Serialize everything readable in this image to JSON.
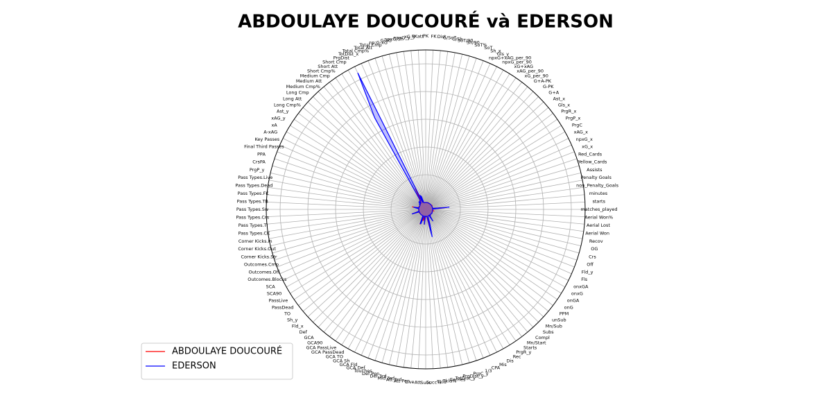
{
  "chart_data": {
    "type": "radar",
    "title": "ABDOULAYE DOUCOURÉ và EDERSON",
    "categories": [
      "matches_played",
      "starts",
      "minutes",
      "non_Penalty_Goals",
      "Penalty Goals",
      "Assists",
      "Yellow_Cards",
      "Red_Cards",
      "xG_x",
      "npxG_x",
      "xAG_x",
      "PrgC",
      "PrgP_x",
      "PrgR_x",
      "Gls_x",
      "Ast_x",
      "G+A",
      "G-PK",
      "G+A-PK",
      "xG_per_90",
      "xAG_per_90",
      "xG+xAG",
      "npxG_per_90",
      "npxG+xAG_per_90",
      "Gls_y",
      "Sh_x",
      "SoT",
      "SoT%",
      "Sh/90",
      "SoT/90",
      "G/Sh",
      "G/SoT",
      "Dist",
      "FK",
      "PK",
      "PKatt",
      "xG_y",
      "npxG_y",
      "npxG/Sh",
      "G-xG",
      "np:G-xG",
      "Total Cmp",
      "Total Att",
      "Total Cmp%",
      "TotDist_x",
      "PrgDist",
      "Short Cmp",
      "Short Att",
      "Short Cmp%",
      "Medium Cmp",
      "Medium Att",
      "Medium Cmp%",
      "Long Cmp",
      "Long Att",
      "Long Cmp%",
      "Ast_y",
      "xAG_y",
      "xA",
      "A-xAG",
      "Key Passes",
      "Final Third Passes",
      "PPA",
      "CrsPA",
      "PrgP_y",
      "Pass Types.Live",
      "Pass Types.Dead",
      "Pass Types.FK",
      "Pass Types.TB",
      "Pass Types.Sw",
      "Pass Types.Crs",
      "Pass Types.TI",
      "Pass Types.CK",
      "Corner Kicks.In",
      "Corner Kicks.Out",
      "Corner Kicks.Str",
      "Outcomes.Cmp",
      "Outcomes.Off",
      "Outcomes.Blocks",
      "SCA",
      "SCA90",
      "PassLive",
      "PassDead",
      "TO",
      "Sh_y",
      "Fld_x",
      "Def",
      "GCA",
      "GCA90",
      "GCA PassLive",
      "GCA PassDead",
      "GCA TO",
      "GCA Sh",
      "GCA Fld",
      "GCA Def",
      "Touches",
      "Def Pen",
      "Def 3rd",
      "Mid 3rd",
      "Att 3rd",
      "Att Pen",
      "Live",
      "Att",
      "Succ",
      "Succ%",
      "Tkld",
      "Tkld%",
      "Carries",
      "TotDist_y",
      "PrgDist_y",
      "PrgC_y",
      "1/3",
      "CPA",
      "Mis",
      "Dis",
      "Rec",
      "PrgR_y",
      "Starts",
      "Mn/Start",
      "Compl",
      "Subs",
      "Mn/Sub",
      "unSub",
      "PPM",
      "onG",
      "onGA",
      "onxG",
      "onxGA",
      "Fls",
      "Fld_y",
      "Off",
      "Crs",
      "OG",
      "Recov",
      "Aerial Won",
      "Aerial Lost",
      "Aerial Won%"
    ],
    "series": [
      {
        "name": "ABDOULAYE DOUCOURÉ",
        "color": "#ff0000",
        "values": [
          28,
          25,
          2070,
          2,
          0,
          2,
          6,
          1,
          2.4,
          2.4,
          2.1,
          25,
          70,
          60,
          2,
          2,
          4,
          2,
          4,
          0.1,
          0.09,
          0.19,
          0.1,
          0.19,
          2,
          25,
          8,
          32,
          1.1,
          0.35,
          0.08,
          0.25,
          18,
          0,
          0,
          0,
          2.4,
          2.4,
          0.1,
          -0.4,
          -0.4,
          880,
          1050,
          83.8,
          2400,
          800,
          450,
          510,
          88,
          340,
          380,
          89,
          50,
          90,
          55,
          2,
          2.1,
          1.8,
          -0.1,
          25,
          70,
          5,
          3,
          70,
          1000,
          50,
          5,
          10,
          20,
          3,
          40,
          2,
          1,
          1,
          0,
          1000,
          10,
          20,
          40,
          1.5,
          35,
          1,
          2,
          1,
          1,
          2,
          1,
          0.1,
          2,
          0.1,
          0,
          0,
          0,
          0,
          1300,
          20,
          150,
          600,
          500,
          30,
          1200,
          20,
          10,
          50,
          12,
          60,
          600,
          2500,
          900,
          40,
          30,
          4,
          30,
          20,
          700,
          60,
          25,
          80,
          10,
          3,
          20,
          8,
          1.2,
          30,
          35,
          32,
          38,
          40,
          30,
          1,
          2,
          0,
          150,
          40,
          50,
          44
        ]
      },
      {
        "name": "EDERSON",
        "color": "#0000ff",
        "values": [
          33,
          33,
          2430,
          0,
          0,
          0,
          2,
          0,
          0,
          0,
          0.1,
          0,
          0,
          0,
          0,
          0,
          0,
          0,
          0,
          0,
          0,
          0,
          0,
          0,
          0,
          0,
          0,
          0,
          0,
          0,
          0,
          0,
          0,
          0,
          0,
          0,
          0,
          0,
          0,
          0,
          0,
          980,
          1130,
          86.7,
          21000,
          14100,
          470,
          490,
          95.9,
          440,
          460,
          95.7,
          70,
          180,
          38.9,
          0,
          0.1,
          0.1,
          -0.1,
          0,
          1,
          0,
          0,
          3,
          800,
          330,
          30,
          0,
          0,
          0,
          0,
          0,
          0,
          0,
          0,
          1110,
          15,
          5,
          1,
          0.03,
          1,
          0,
          0,
          0,
          0,
          0,
          0,
          0,
          0,
          0,
          0,
          0,
          0,
          0,
          1200,
          1180,
          20,
          0,
          0,
          0,
          1200,
          0,
          0,
          0,
          0,
          0,
          250,
          3100,
          1300,
          0,
          0,
          0,
          0,
          0,
          1000,
          0,
          33,
          73,
          33,
          0,
          0,
          5,
          2.1,
          60,
          30,
          55,
          35,
          1,
          5,
          0,
          0,
          0,
          1,
          0,
          0,
          0
        ]
      }
    ],
    "ylim": [
      -1000,
      22000
    ],
    "yticks": [
      4000,
      8000,
      12000,
      16000,
      20000
    ],
    "fill": true,
    "legend": "lower left"
  }
}
